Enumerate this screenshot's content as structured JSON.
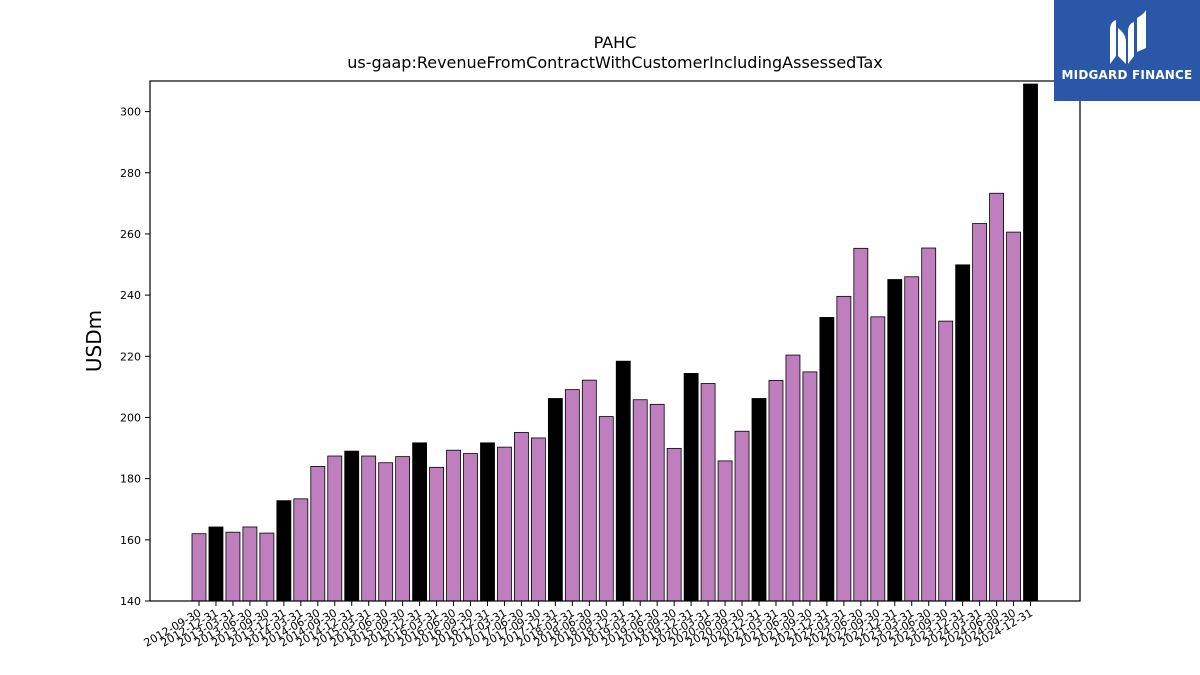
{
  "chart_data": {
    "type": "bar",
    "title": "PAHC",
    "subtitle": "us-gaap:RevenueFromContractWithCustomerIncludingAssessedTax",
    "xlabel": "",
    "ylabel": "USDm",
    "ylim": [
      140,
      310
    ],
    "yticks": [
      140,
      160,
      180,
      200,
      220,
      240,
      260,
      280,
      300
    ],
    "grid": false,
    "colors": {
      "quarter": "#bf7fbf",
      "fiscal_year_end": "#000000",
      "edge": "#000000"
    },
    "categories": [
      "2012-09-30",
      "2012-12-31",
      "2013-03-31",
      "2013-06-30",
      "2013-09-30",
      "2013-12-31",
      "2014-03-31",
      "2014-06-30",
      "2014-09-30",
      "2014-12-31",
      "2015-03-31",
      "2015-06-30",
      "2015-09-30",
      "2015-12-31",
      "2016-03-31",
      "2016-06-30",
      "2016-09-30",
      "2016-12-31",
      "2017-03-31",
      "2017-06-30",
      "2017-09-30",
      "2017-12-31",
      "2018-03-31",
      "2018-06-30",
      "2018-09-30",
      "2018-12-31",
      "2019-03-31",
      "2019-06-30",
      "2019-09-30",
      "2019-12-31",
      "2020-03-31",
      "2020-06-30",
      "2020-09-30",
      "2020-12-31",
      "2021-03-31",
      "2021-06-30",
      "2021-09-30",
      "2021-12-31",
      "2022-03-31",
      "2022-06-30",
      "2022-09-30",
      "2022-12-31",
      "2023-03-31",
      "2023-06-30",
      "2023-09-30",
      "2023-12-31",
      "2024-03-31",
      "2024-06-30",
      "2024-09-30",
      "2024-12-31"
    ],
    "values": [
      162,
      164.2,
      162.5,
      164.2,
      162.2,
      172.8,
      173.4,
      184,
      187.4,
      189,
      187.4,
      185.2,
      187.2,
      191.7,
      183.7,
      189.3,
      188.2,
      191.7,
      190.3,
      195.1,
      193.3,
      206.2,
      209.1,
      212.2,
      200.3,
      218.4,
      205.8,
      204.3,
      189.9,
      214.4,
      211.1,
      185.8,
      195.5,
      206.2,
      212.1,
      220.4,
      214.9,
      232.7,
      239.6,
      255.3,
      232.9,
      245.1,
      246,
      255.4,
      231.5,
      249.9,
      263.4,
      273.3,
      260.6,
      309
    ],
    "highlighted": [
      1,
      5,
      9,
      13,
      17,
      21,
      25,
      29,
      33,
      37,
      41,
      45,
      49
    ]
  },
  "logo": {
    "brand": "MIDGARD FINANCE",
    "icon": "midgard-logo-icon"
  }
}
